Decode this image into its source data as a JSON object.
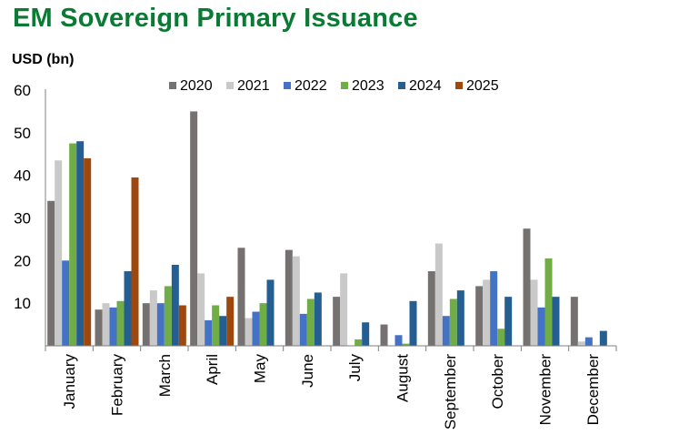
{
  "title": "EM Sovereign Primary Issuance",
  "unit_label": "USD (bn)",
  "chart_data": {
    "type": "bar",
    "title": "EM Sovereign Primary Issuance",
    "ylabel": "USD (bn)",
    "xlabel": "",
    "ylim": [
      0,
      60
    ],
    "yticks": [
      10,
      20,
      30,
      40,
      50,
      60
    ],
    "grid": false,
    "legend_position": "top-center",
    "categories": [
      "January",
      "February",
      "March",
      "April",
      "May",
      "June",
      "July",
      "August",
      "September",
      "October",
      "November",
      "December"
    ],
    "series": [
      {
        "name": "2020",
        "color": "#767171",
        "values": [
          34,
          8.5,
          10,
          55,
          23,
          22.5,
          11.5,
          5,
          17.5,
          14,
          27.5,
          11.5
        ]
      },
      {
        "name": "2021",
        "color": "#c9c9c9",
        "values": [
          43.5,
          10,
          13,
          17,
          6.5,
          21,
          17,
          0,
          24,
          15.5,
          15.5,
          1
        ]
      },
      {
        "name": "2022",
        "color": "#4472c4",
        "values": [
          20,
          9,
          10,
          6,
          8,
          7.5,
          0,
          2.5,
          7,
          17.5,
          9,
          2
        ]
      },
      {
        "name": "2023",
        "color": "#70ad47",
        "values": [
          47.5,
          10.5,
          14,
          9.5,
          10,
          11,
          1.5,
          0.5,
          11,
          4,
          20.5,
          0
        ]
      },
      {
        "name": "2024",
        "color": "#255e91",
        "values": [
          48,
          17.5,
          19,
          7,
          15.5,
          12.5,
          5.5,
          10.5,
          13,
          11.5,
          11.5,
          3.5
        ]
      },
      {
        "name": "2025",
        "color": "#9e480e",
        "values": [
          44,
          39.5,
          9.5,
          11.5,
          null,
          null,
          null,
          null,
          null,
          null,
          null,
          null
        ]
      }
    ]
  }
}
